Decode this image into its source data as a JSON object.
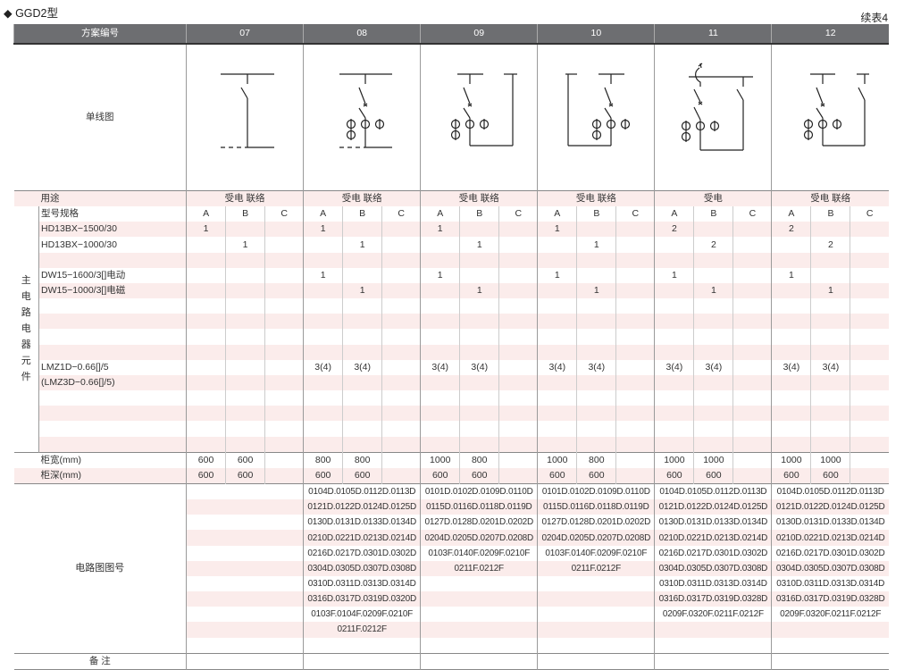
{
  "title": "◆ GGD2型",
  "continued": "续表4",
  "header": {
    "scheme_label": "方案编号"
  },
  "labels": {
    "diagram": "单线图",
    "usage": "用途",
    "main_elements_vertical": [
      "主",
      "电",
      "路",
      "电",
      "器",
      "元",
      "件"
    ],
    "element_rows": [
      "型号规格",
      "HD13BX−1500/30",
      "HD13BX−1000/30",
      "",
      "DW15−1600/3[]电动",
      "DW15−1000/3[]电磁",
      "",
      "",
      "",
      "",
      "LMZ1D−0.66[]/5",
      "(LMZ3D−0.66[]/5)",
      "",
      "",
      "",
      ""
    ],
    "width": "柜宽(mm)",
    "depth": "柜深(mm)",
    "circuit": "电路图图号",
    "remarks": "备 注"
  },
  "schemes": [
    {
      "id": "07",
      "usage": "受电  联络",
      "elements": [
        [
          "A",
          "B",
          "C"
        ],
        [
          "1",
          "",
          ""
        ],
        [
          "",
          "1",
          ""
        ],
        [
          "",
          "",
          ""
        ],
        [
          "",
          "",
          ""
        ],
        [
          "",
          "",
          ""
        ],
        [
          "",
          "",
          ""
        ],
        [
          "",
          "",
          ""
        ],
        [
          "",
          "",
          ""
        ],
        [
          "",
          "",
          ""
        ],
        [
          "",
          "",
          ""
        ],
        [
          "",
          "",
          ""
        ],
        [
          "",
          "",
          ""
        ],
        [
          "",
          "",
          ""
        ],
        [
          "",
          "",
          ""
        ],
        [
          "",
          "",
          ""
        ]
      ],
      "width": [
        "600",
        "600",
        ""
      ],
      "depth": [
        "600",
        "600",
        ""
      ],
      "circuit": []
    },
    {
      "id": "08",
      "usage": "受电  联络",
      "elements": [
        [
          "A",
          "B",
          "C"
        ],
        [
          "1",
          "",
          ""
        ],
        [
          "",
          "1",
          ""
        ],
        [
          "",
          "",
          ""
        ],
        [
          "1",
          "",
          ""
        ],
        [
          "",
          "1",
          ""
        ],
        [
          "",
          "",
          ""
        ],
        [
          "",
          "",
          ""
        ],
        [
          "",
          "",
          ""
        ],
        [
          "",
          "",
          ""
        ],
        [
          "3(4)",
          "3(4)",
          ""
        ],
        [
          "",
          "",
          ""
        ],
        [
          "",
          "",
          ""
        ],
        [
          "",
          "",
          ""
        ],
        [
          "",
          "",
          ""
        ],
        [
          "",
          "",
          ""
        ]
      ],
      "width": [
        "800",
        "800",
        ""
      ],
      "depth": [
        "600",
        "600",
        ""
      ],
      "circuit": [
        "0104D.0105D.0112D.0113D",
        "0121D.0122D.0124D.0125D",
        "0130D.0131D.0133D.0134D",
        "0210D.0221D.0213D.0214D",
        "0216D.0217D.0301D.0302D",
        "0304D.0305D.0307D.0308D",
        "0310D.0311D.0313D.0314D",
        "0316D.0317D.0319D.0320D",
        "0103F.0104F.0209F.0210F",
        "0211F.0212F"
      ]
    },
    {
      "id": "09",
      "usage": "受电  联络",
      "elements": [
        [
          "A",
          "B",
          "C"
        ],
        [
          "1",
          "",
          ""
        ],
        [
          "",
          "1",
          ""
        ],
        [
          "",
          "",
          ""
        ],
        [
          "1",
          "",
          ""
        ],
        [
          "",
          "1",
          ""
        ],
        [
          "",
          "",
          ""
        ],
        [
          "",
          "",
          ""
        ],
        [
          "",
          "",
          ""
        ],
        [
          "",
          "",
          ""
        ],
        [
          "3(4)",
          "3(4)",
          ""
        ],
        [
          "",
          "",
          ""
        ],
        [
          "",
          "",
          ""
        ],
        [
          "",
          "",
          ""
        ],
        [
          "",
          "",
          ""
        ],
        [
          "",
          "",
          ""
        ]
      ],
      "width": [
        "1000",
        "800",
        ""
      ],
      "depth": [
        "600",
        "600",
        ""
      ],
      "circuit": [
        "0101D.0102D.0109D.0110D",
        "0115D.0116D.0118D.0119D",
        "0127D.0128D.0201D.0202D",
        "0204D.0205D.0207D.0208D",
        "0103F.0140F.0209F.0210F",
        "0211F.0212F"
      ]
    },
    {
      "id": "10",
      "usage": "受电  联络",
      "elements": [
        [
          "A",
          "B",
          "C"
        ],
        [
          "1",
          "",
          ""
        ],
        [
          "",
          "1",
          ""
        ],
        [
          "",
          "",
          ""
        ],
        [
          "1",
          "",
          ""
        ],
        [
          "",
          "1",
          ""
        ],
        [
          "",
          "",
          ""
        ],
        [
          "",
          "",
          ""
        ],
        [
          "",
          "",
          ""
        ],
        [
          "",
          "",
          ""
        ],
        [
          "3(4)",
          "3(4)",
          ""
        ],
        [
          "",
          "",
          ""
        ],
        [
          "",
          "",
          ""
        ],
        [
          "",
          "",
          ""
        ],
        [
          "",
          "",
          ""
        ],
        [
          "",
          "",
          ""
        ]
      ],
      "width": [
        "1000",
        "800",
        ""
      ],
      "depth": [
        "600",
        "600",
        ""
      ],
      "circuit": [
        "0101D.0102D.0109D.0110D",
        "0115D.0116D.0118D.0119D",
        "0127D.0128D.0201D.0202D",
        "0204D.0205D.0207D.0208D",
        "0103F.0140F.0209F.0210F",
        "0211F.0212F"
      ]
    },
    {
      "id": "11",
      "usage": "受电",
      "elements": [
        [
          "A",
          "B",
          "C"
        ],
        [
          "2",
          "",
          ""
        ],
        [
          "",
          "2",
          ""
        ],
        [
          "",
          "",
          ""
        ],
        [
          "1",
          "",
          ""
        ],
        [
          "",
          "1",
          ""
        ],
        [
          "",
          "",
          ""
        ],
        [
          "",
          "",
          ""
        ],
        [
          "",
          "",
          ""
        ],
        [
          "",
          "",
          ""
        ],
        [
          "3(4)",
          "3(4)",
          ""
        ],
        [
          "",
          "",
          ""
        ],
        [
          "",
          "",
          ""
        ],
        [
          "",
          "",
          ""
        ],
        [
          "",
          "",
          ""
        ],
        [
          "",
          "",
          ""
        ]
      ],
      "width": [
        "1000",
        "1000",
        ""
      ],
      "depth": [
        "600",
        "600",
        ""
      ],
      "circuit": [
        "0104D.0105D.0112D.0113D",
        "0121D.0122D.0124D.0125D",
        "0130D.0131D.0133D.0134D",
        "0210D.0221D.0213D.0214D",
        "0216D.0217D.0301D.0302D",
        "0304D.0305D.0307D.0308D",
        "0310D.0311D.0313D.0314D",
        "0316D.0317D.0319D.0328D",
        "0209F.0320F.0211F.0212F"
      ]
    },
    {
      "id": "12",
      "usage": "受电  联络",
      "elements": [
        [
          "A",
          "B",
          "C"
        ],
        [
          "2",
          "",
          ""
        ],
        [
          "",
          "2",
          ""
        ],
        [
          "",
          "",
          ""
        ],
        [
          "1",
          "",
          ""
        ],
        [
          "",
          "1",
          ""
        ],
        [
          "",
          "",
          ""
        ],
        [
          "",
          "",
          ""
        ],
        [
          "",
          "",
          ""
        ],
        [
          "",
          "",
          ""
        ],
        [
          "3(4)",
          "3(4)",
          ""
        ],
        [
          "",
          "",
          ""
        ],
        [
          "",
          "",
          ""
        ],
        [
          "",
          "",
          ""
        ],
        [
          "",
          "",
          ""
        ],
        [
          "",
          "",
          ""
        ]
      ],
      "width": [
        "1000",
        "1000",
        ""
      ],
      "depth": [
        "600",
        "600",
        ""
      ],
      "circuit": [
        "0104D.0105D.0112D.0113D",
        "0121D.0122D.0124D.0125D",
        "0130D.0131D.0133D.0134D",
        "0210D.0221D.0213D.0214D",
        "0216D.0217D.0301D.0302D",
        "0304D.0305D.0307D.0308D",
        "0310D.0311D.0313D.0314D",
        "0316D.0317D.0319D.0328D",
        "0209F.0320F.0211F.0212F"
      ]
    }
  ],
  "colors": {
    "header_bg": "#6d6e71",
    "stripe": "#fbeceb",
    "rule": "#9a9a9a"
  }
}
